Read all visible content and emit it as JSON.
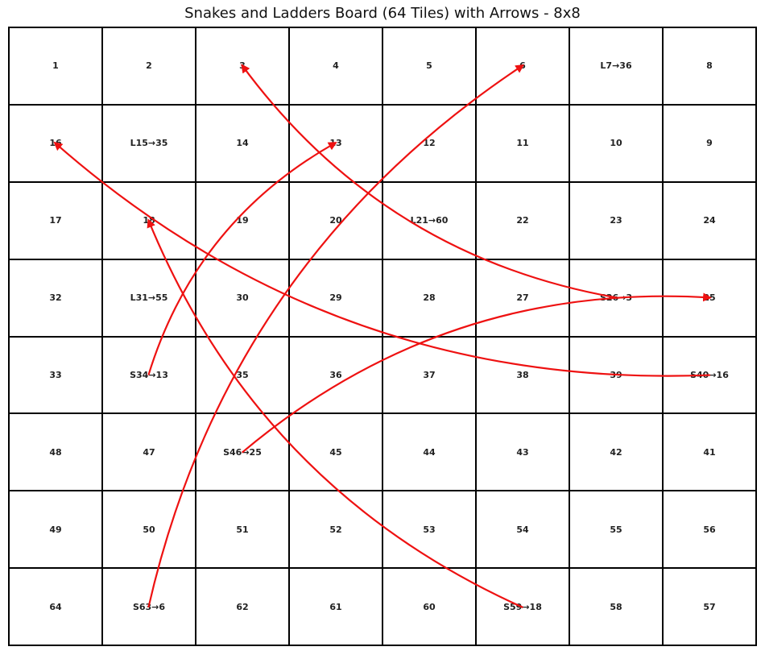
{
  "title": "Snakes and Ladders Board (64 Tiles) with Arrows - 8x8",
  "arrow_color": "#ee1111",
  "rows": [
    [
      "1",
      "2",
      "3",
      "4",
      "5",
      "6",
      "L7→36",
      "8"
    ],
    [
      "16",
      "L15→35",
      "14",
      "13",
      "12",
      "11",
      "10",
      "9"
    ],
    [
      "17",
      "18",
      "19",
      "20",
      "L21→60",
      "22",
      "23",
      "24"
    ],
    [
      "32",
      "L31→55",
      "30",
      "29",
      "28",
      "27",
      "S26→3",
      "25"
    ],
    [
      "33",
      "S34→13",
      "35",
      "36",
      "37",
      "38",
      "39",
      "S40→16"
    ],
    [
      "48",
      "47",
      "S46→25",
      "45",
      "44",
      "43",
      "42",
      "41"
    ],
    [
      "49",
      "50",
      "51",
      "52",
      "53",
      "54",
      "55",
      "56"
    ],
    [
      "64",
      "S63→6",
      "62",
      "61",
      "60",
      "S59→18",
      "58",
      "57"
    ]
  ],
  "arrows": [
    {
      "from": 26,
      "to": 3
    },
    {
      "from": 34,
      "to": 13
    },
    {
      "from": 40,
      "to": 16
    },
    {
      "from": 46,
      "to": 25
    },
    {
      "from": 59,
      "to": 18
    },
    {
      "from": 63,
      "to": 6
    }
  ]
}
